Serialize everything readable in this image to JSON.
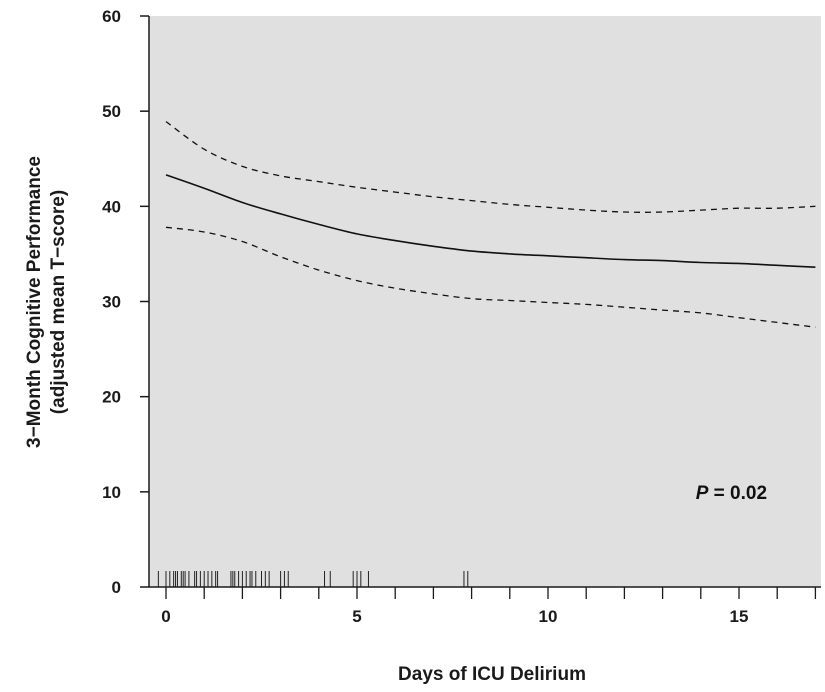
{
  "chart_data": {
    "type": "line",
    "title": "",
    "xlabel": "Days of ICU Delirium",
    "ylabel_line1": "3−Month Cognitive Performance",
    "ylabel_line2": "(adjusted mean T−score)",
    "xlim": [
      -0.5,
      17.2
    ],
    "ylim": [
      0,
      60
    ],
    "x_ticks_labeled": [
      0,
      5,
      10,
      15
    ],
    "x_tick_labels": [
      "0",
      "5",
      "10",
      "15"
    ],
    "x_ticks_minor": [
      0,
      1,
      2,
      3,
      4,
      5,
      6,
      7,
      8,
      9,
      10,
      11,
      12,
      13,
      14,
      15,
      16,
      17
    ],
    "y_ticks": [
      0,
      10,
      20,
      30,
      40,
      50,
      60
    ],
    "y_tick_labels": [
      "0",
      "10",
      "20",
      "30",
      "40",
      "50",
      "60"
    ],
    "grid": false,
    "plot_background": "#e0e0e0",
    "series": [
      {
        "style": "solid",
        "x": [
          0,
          1,
          2,
          3,
          4,
          5,
          6,
          7,
          8,
          9,
          10,
          11,
          12,
          13,
          14,
          15,
          16,
          17
        ],
        "y": [
          43.3,
          41.9,
          40.4,
          39.2,
          38.1,
          37.1,
          36.4,
          35.8,
          35.3,
          35.0,
          34.8,
          34.6,
          34.4,
          34.3,
          34.1,
          34.0,
          33.8,
          33.6
        ]
      },
      {
        "style": "dashed",
        "x": [
          0,
          1,
          2,
          3,
          4,
          5,
          6,
          7,
          8,
          9,
          10,
          11,
          12,
          13,
          14,
          15,
          16,
          17
        ],
        "y": [
          48.9,
          46.0,
          44.2,
          43.2,
          42.6,
          42.0,
          41.5,
          41.0,
          40.6,
          40.2,
          39.9,
          39.6,
          39.4,
          39.4,
          39.6,
          39.8,
          39.8,
          40.0
        ]
      },
      {
        "style": "dashed",
        "x": [
          0,
          1,
          2,
          3,
          4,
          5,
          6,
          7,
          8,
          9,
          10,
          11,
          12,
          13,
          14,
          15,
          16,
          17
        ],
        "y": [
          37.8,
          37.3,
          36.3,
          34.7,
          33.3,
          32.2,
          31.4,
          30.8,
          30.3,
          30.1,
          29.9,
          29.7,
          29.4,
          29.1,
          28.8,
          28.3,
          27.8,
          27.3
        ]
      }
    ],
    "rug_x": [
      -0.2,
      0.0,
      0.1,
      0.2,
      0.25,
      0.3,
      0.4,
      0.45,
      0.5,
      0.6,
      0.75,
      0.8,
      0.9,
      1.0,
      1.1,
      1.2,
      1.3,
      1.35,
      1.7,
      1.75,
      1.8,
      1.9,
      2.0,
      2.1,
      2.2,
      2.25,
      2.35,
      2.5,
      2.6,
      2.7,
      3.0,
      3.1,
      3.2,
      4.15,
      4.3,
      4.9,
      5.0,
      5.1,
      5.3,
      7.8,
      7.9
    ],
    "annotation": {
      "label_p": "P",
      "label_rest": " = 0.02",
      "x": 14.8,
      "y": 10
    }
  }
}
